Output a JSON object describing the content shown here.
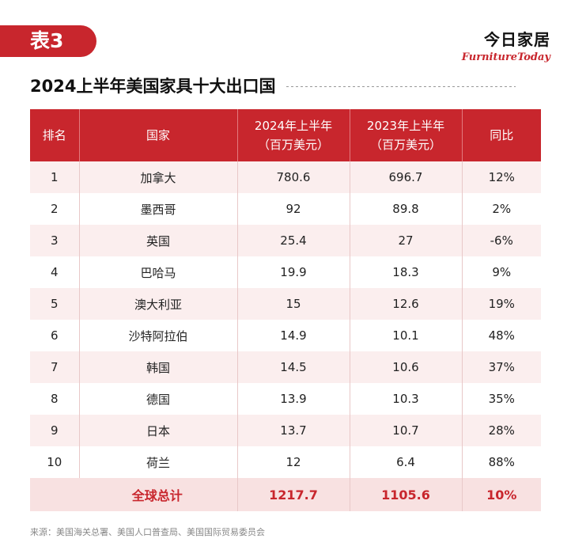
{
  "tag": {
    "label": "表3"
  },
  "brand": {
    "cn": "今日家居",
    "en": "FurnitureToday"
  },
  "title": "2024上半年美国家具十大出口国",
  "table": {
    "headers": [
      "排名",
      "国家",
      "2024年上半年\n（百万美元）",
      "2023年上半年\n（百万美元）",
      "同比"
    ],
    "rows": [
      {
        "rank": "1",
        "country": "加拿大",
        "h1_2024": "780.6",
        "h1_2023": "696.7",
        "yoy": "12%"
      },
      {
        "rank": "2",
        "country": "墨西哥",
        "h1_2024": "92",
        "h1_2023": "89.8",
        "yoy": "2%"
      },
      {
        "rank": "3",
        "country": "英国",
        "h1_2024": "25.4",
        "h1_2023": "27",
        "yoy": "-6%"
      },
      {
        "rank": "4",
        "country": "巴哈马",
        "h1_2024": "19.9",
        "h1_2023": "18.3",
        "yoy": "9%"
      },
      {
        "rank": "5",
        "country": "澳大利亚",
        "h1_2024": "15",
        "h1_2023": "12.6",
        "yoy": "19%"
      },
      {
        "rank": "6",
        "country": "沙特阿拉伯",
        "h1_2024": "14.9",
        "h1_2023": "10.1",
        "yoy": "48%"
      },
      {
        "rank": "7",
        "country": "韩国",
        "h1_2024": "14.5",
        "h1_2023": "10.6",
        "yoy": "37%"
      },
      {
        "rank": "8",
        "country": "德国",
        "h1_2024": "13.9",
        "h1_2023": "10.3",
        "yoy": "35%"
      },
      {
        "rank": "9",
        "country": "日本",
        "h1_2024": "13.7",
        "h1_2023": "10.7",
        "yoy": "28%"
      },
      {
        "rank": "10",
        "country": "荷兰",
        "h1_2024": "12",
        "h1_2023": "6.4",
        "yoy": "88%"
      }
    ],
    "total": {
      "label": "全球总计",
      "h1_2024": "1217.7",
      "h1_2023": "1105.6",
      "yoy": "10%"
    }
  },
  "source": "来源：美国海关总署、美国人口普查局、美国国际贸易委员会",
  "colors": {
    "accent": "#c8262d",
    "row_tint": "#fbeeee",
    "total_bg": "#f8e1e1"
  }
}
